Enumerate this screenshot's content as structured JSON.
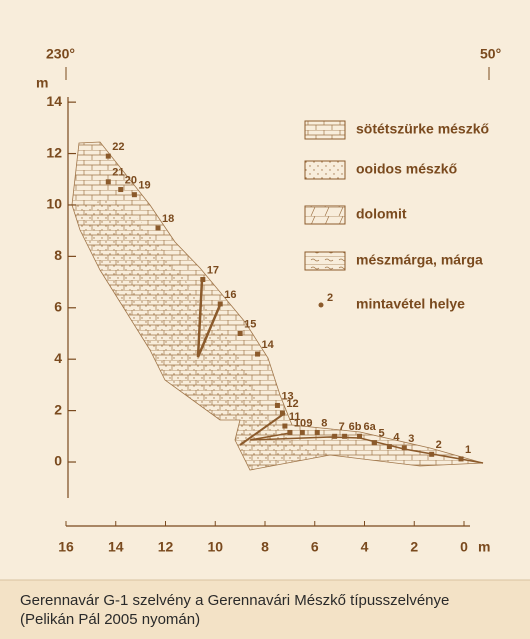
{
  "chart_data": {
    "type": "scatter",
    "directions": [
      "230°",
      "50°"
    ],
    "x_label": "m",
    "y_label": "m",
    "xlim": [
      16,
      0
    ],
    "ylim": [
      -1.4,
      14.2
    ],
    "xticks": [
      16,
      14,
      12,
      10,
      8,
      6,
      4,
      2,
      0
    ],
    "yticks": [
      0,
      2,
      4,
      6,
      8,
      10,
      12,
      14
    ],
    "series": [
      {
        "name": "mintavétel helye",
        "color": "#8b5a2b",
        "point_labels": [
          "1",
          "2",
          "3",
          "4",
          "5",
          "6a",
          "6b",
          "7",
          "8",
          "9",
          "10",
          "11",
          "12",
          "13",
          "14",
          "15",
          "16",
          "17",
          "18",
          "19",
          "20",
          "21",
          "22"
        ],
        "x": [
          0.12,
          1.3,
          2.4,
          3.0,
          3.6,
          4.2,
          4.8,
          5.2,
          5.9,
          6.5,
          7.0,
          7.2,
          7.3,
          7.5,
          8.3,
          9.0,
          9.8,
          10.5,
          12.3,
          13.25,
          13.8,
          14.3,
          14.3
        ],
        "values": [
          0.12,
          0.3,
          0.55,
          0.6,
          0.75,
          1.0,
          1.0,
          1.0,
          1.15,
          1.15,
          1.15,
          1.4,
          1.9,
          2.2,
          4.2,
          5.0,
          6.15,
          7.1,
          9.1,
          10.4,
          10.6,
          10.9,
          11.9
        ]
      }
    ],
    "legend": [
      "sötétszürke mészkő",
      "ooidos mészkő",
      "dolomit",
      "mészmárga, márga"
    ],
    "legend_marker_label": "2",
    "caption": [
      "Gerennavár G-1 szelvény a Gerennavári Mészkő típusszelvénye",
      "(Pelikán Pál 2005 nyomán)"
    ]
  }
}
